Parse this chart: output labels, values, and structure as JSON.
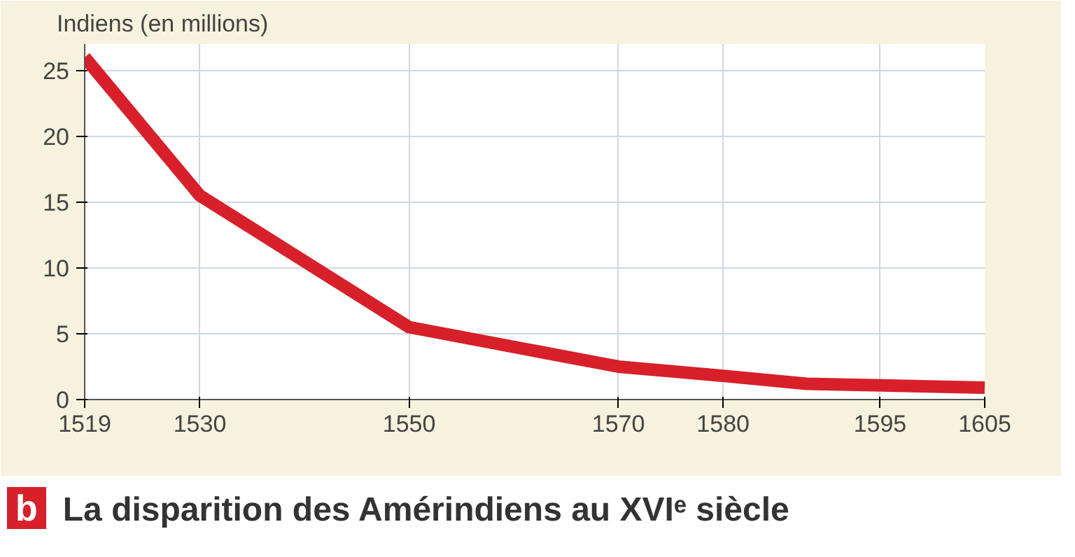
{
  "chart_data": {
    "type": "line",
    "title": "La disparition des Amérindiens au XVIᵉ siècle",
    "ylabel": "Indiens (en millions)",
    "annotations": [
      "b"
    ],
    "x": [
      1519,
      1530,
      1550,
      1570,
      1580,
      1588,
      1605
    ],
    "series": [
      {
        "color": "#d7202a",
        "values": [
          26,
          15.5,
          5.5,
          2.5,
          1.8,
          1.2,
          0.9
        ]
      }
    ],
    "xlim": [
      1519,
      1605
    ],
    "xticks": [
      1519,
      1530,
      1550,
      1570,
      1580,
      1595,
      1605
    ],
    "ylim": [
      0,
      27
    ],
    "yticks": [
      0,
      5,
      10,
      15,
      20,
      25
    ],
    "grid": true,
    "marker": "none",
    "line_style": "solid"
  }
}
